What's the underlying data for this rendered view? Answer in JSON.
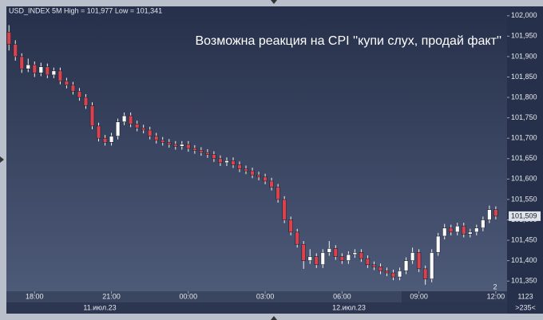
{
  "chart_data": {
    "type": "candlestick",
    "title": "USD_INDEX 5M High = 101,977 Low = 101,341",
    "annotation": "Возможна реакция на CPI ''купи слух, продай факт''",
    "price_label": {
      "value": 101.509,
      "label": "101,509"
    },
    "date_labels": [
      "11.июл.23",
      "12.июл.23"
    ],
    "corner_labels": [
      "2",
      "1123",
      ">235<"
    ],
    "up_color": "#ffffff",
    "down_color": "#d9434f",
    "grid": false,
    "xlim": [
      16.9,
      36.44
    ],
    "xticks": [
      {
        "value": 18,
        "label": "18:00"
      },
      {
        "value": 21,
        "label": "21:00"
      },
      {
        "value": 24,
        "label": "00:00"
      },
      {
        "value": 27,
        "label": "03:00"
      },
      {
        "value": 30,
        "label": "06:00"
      },
      {
        "value": 33,
        "label": "09:00"
      },
      {
        "value": 36,
        "label": "12:00"
      }
    ],
    "ylim": [
      101.325,
      102.023
    ],
    "yticks": [
      {
        "value": 102.0,
        "label": "102,000"
      },
      {
        "value": 101.95,
        "label": "101,950"
      },
      {
        "value": 101.9,
        "label": "101,900"
      },
      {
        "value": 101.85,
        "label": "101,850"
      },
      {
        "value": 101.8,
        "label": "101,800"
      },
      {
        "value": 101.75,
        "label": "101,750"
      },
      {
        "value": 101.7,
        "label": "101,700"
      },
      {
        "value": 101.65,
        "label": "101,650"
      },
      {
        "value": 101.6,
        "label": "101,600"
      },
      {
        "value": 101.55,
        "label": "101,550"
      },
      {
        "value": 101.5,
        "label": "101,500"
      },
      {
        "value": 101.45,
        "label": "101,450"
      },
      {
        "value": 101.4,
        "label": "101,400"
      },
      {
        "value": 101.35,
        "label": "101,350"
      }
    ],
    "x": [
      17.0,
      17.25,
      17.5,
      17.75,
      18.0,
      18.25,
      18.5,
      18.75,
      19.0,
      19.25,
      19.5,
      19.75,
      20.0,
      20.25,
      20.5,
      20.75,
      21.0,
      21.25,
      21.5,
      21.75,
      22.0,
      22.25,
      22.5,
      22.75,
      23.0,
      23.25,
      23.5,
      23.75,
      24.0,
      24.25,
      24.5,
      24.75,
      25.0,
      25.25,
      25.5,
      25.75,
      26.0,
      26.25,
      26.5,
      26.75,
      27.0,
      27.25,
      27.5,
      27.75,
      28.0,
      28.25,
      28.5,
      28.75,
      29.0,
      29.25,
      29.5,
      29.75,
      30.0,
      30.25,
      30.5,
      30.75,
      31.0,
      31.25,
      31.5,
      31.75,
      32.0,
      32.25,
      32.5,
      32.75,
      33.0,
      33.25,
      33.5,
      33.75,
      34.0,
      34.25,
      34.5,
      34.75,
      35.0,
      35.25,
      35.5,
      35.75,
      36.0
    ],
    "open": [
      101.96,
      101.93,
      101.9,
      101.87,
      101.88,
      101.86,
      101.875,
      101.855,
      101.865,
      101.84,
      101.83,
      101.815,
      101.8,
      101.78,
      101.73,
      101.7,
      101.69,
      101.705,
      101.74,
      101.755,
      101.735,
      101.725,
      101.72,
      101.705,
      101.695,
      101.69,
      101.685,
      101.68,
      101.685,
      101.675,
      101.67,
      101.665,
      101.66,
      101.65,
      101.64,
      101.645,
      101.635,
      101.625,
      101.62,
      101.61,
      101.605,
      101.595,
      101.58,
      101.55,
      101.5,
      101.47,
      101.44,
      101.4,
      101.41,
      101.39,
      101.42,
      101.43,
      101.41,
      101.4,
      101.415,
      101.42,
      101.405,
      101.39,
      101.385,
      101.375,
      101.37,
      101.36,
      101.375,
      101.4,
      101.42,
      101.38,
      101.355,
      101.42,
      101.46,
      101.48,
      101.47,
      101.485,
      101.465,
      101.47,
      101.48,
      101.5,
      101.525
    ],
    "high": [
      101.977,
      101.94,
      101.908,
      101.895,
      101.888,
      101.885,
      101.883,
      101.873,
      101.873,
      101.848,
      101.838,
      101.823,
      101.808,
      101.788,
      101.738,
      101.708,
      101.713,
      101.748,
      101.763,
      101.763,
      101.743,
      101.733,
      101.728,
      101.713,
      101.703,
      101.698,
      101.693,
      101.693,
      101.693,
      101.683,
      101.678,
      101.673,
      101.668,
      101.658,
      101.653,
      101.653,
      101.643,
      101.633,
      101.628,
      101.618,
      101.613,
      101.603,
      101.588,
      101.558,
      101.508,
      101.478,
      101.448,
      101.428,
      101.418,
      101.428,
      101.448,
      101.438,
      101.418,
      101.423,
      101.428,
      101.428,
      101.413,
      101.398,
      101.393,
      101.383,
      101.378,
      101.383,
      101.408,
      101.432,
      101.428,
      101.388,
      101.428,
      101.468,
      101.49,
      101.488,
      101.493,
      101.493,
      101.478,
      101.488,
      101.508,
      101.535,
      101.533
    ],
    "low": [
      101.915,
      101.89,
      101.86,
      101.862,
      101.85,
      101.852,
      101.847,
      101.847,
      101.832,
      101.822,
      101.807,
      101.792,
      101.772,
      101.722,
      101.692,
      101.682,
      101.682,
      101.697,
      101.732,
      101.727,
      101.717,
      101.712,
      101.697,
      101.687,
      101.682,
      101.677,
      101.672,
      101.672,
      101.667,
      101.662,
      101.657,
      101.652,
      101.642,
      101.632,
      101.632,
      101.627,
      101.617,
      101.612,
      101.602,
      101.597,
      101.587,
      101.572,
      101.542,
      101.492,
      101.462,
      101.432,
      101.38,
      101.392,
      101.382,
      101.382,
      101.412,
      101.402,
      101.392,
      101.392,
      101.407,
      101.397,
      101.382,
      101.377,
      101.367,
      101.362,
      101.352,
      101.352,
      101.367,
      101.392,
      101.372,
      101.341,
      101.347,
      101.412,
      101.452,
      101.462,
      101.462,
      101.457,
      101.457,
      101.462,
      101.472,
      101.492,
      101.501
    ],
    "close": [
      101.93,
      101.9,
      101.87,
      101.88,
      101.86,
      101.875,
      101.855,
      101.865,
      101.84,
      101.83,
      101.815,
      101.8,
      101.78,
      101.73,
      101.7,
      101.69,
      101.705,
      101.74,
      101.755,
      101.735,
      101.725,
      101.72,
      101.705,
      101.695,
      101.69,
      101.685,
      101.68,
      101.685,
      101.675,
      101.67,
      101.665,
      101.66,
      101.65,
      101.64,
      101.645,
      101.635,
      101.625,
      101.62,
      101.61,
      101.605,
      101.595,
      101.58,
      101.55,
      101.5,
      101.47,
      101.44,
      101.4,
      101.41,
      101.39,
      101.42,
      101.43,
      101.41,
      101.4,
      101.415,
      101.42,
      101.405,
      101.39,
      101.385,
      101.375,
      101.37,
      101.36,
      101.375,
      101.4,
      101.42,
      101.38,
      101.355,
      101.42,
      101.46,
      101.48,
      101.47,
      101.485,
      101.465,
      101.47,
      101.48,
      101.5,
      101.525,
      101.509
    ]
  }
}
